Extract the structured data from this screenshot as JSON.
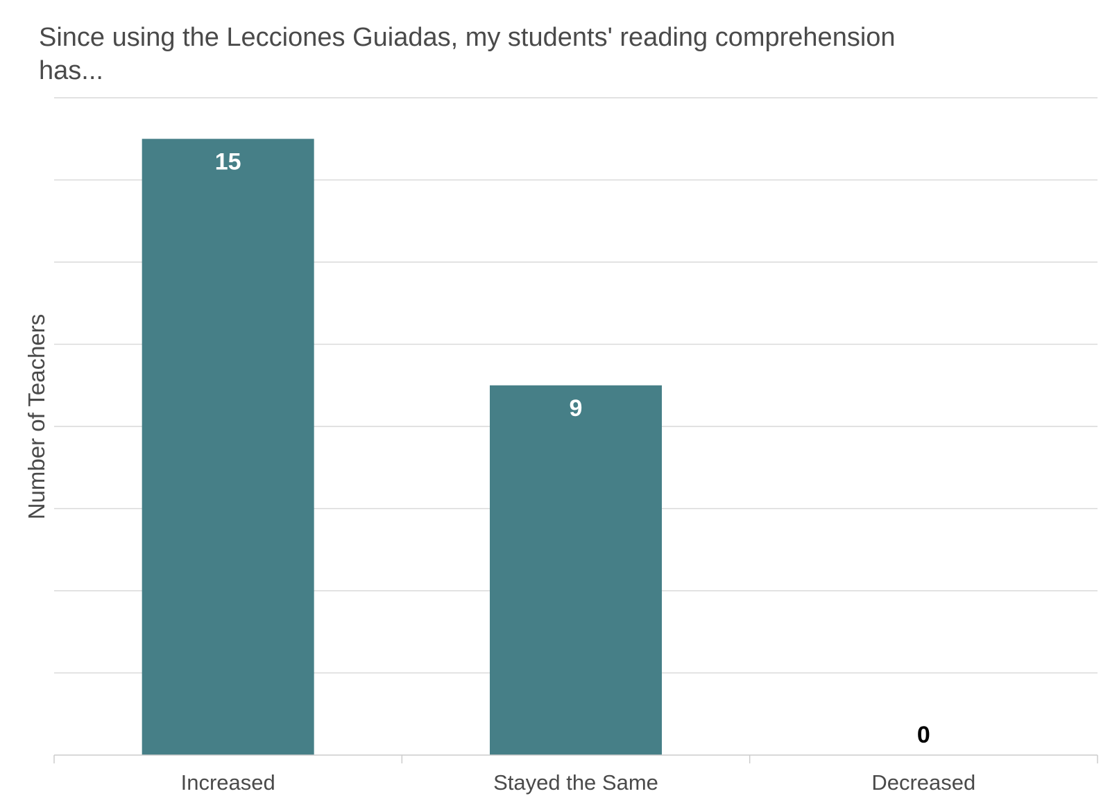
{
  "chart_data": {
    "type": "bar",
    "title": "Since using the Lecciones Guiadas, my students' reading comprehension has...",
    "xlabel": "",
    "ylabel": "Number of Teachers",
    "categories": [
      "Increased",
      "Stayed the Same",
      "Decreased"
    ],
    "values": [
      15,
      9,
      0
    ],
    "ylim": [
      0,
      16
    ],
    "grid": true,
    "legend": "none",
    "colors": {
      "bar": "#467f87",
      "label_inside": "#ffffff",
      "label_outside": "#000000",
      "grid": "#d9d9d9",
      "text": "#4a4a4a"
    }
  }
}
